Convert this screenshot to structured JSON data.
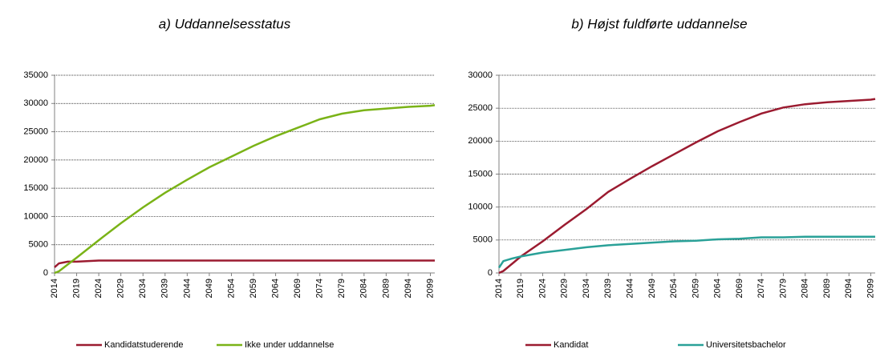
{
  "chart_data": [
    {
      "type": "line",
      "title": "a) Uddannelsesstatus",
      "x": [
        2014,
        2015,
        2017,
        2019,
        2024,
        2029,
        2034,
        2039,
        2044,
        2049,
        2054,
        2059,
        2064,
        2069,
        2074,
        2079,
        2084,
        2089,
        2094,
        2099,
        2100
      ],
      "series": [
        {
          "name": "Kandidatstuderende",
          "color": "#9b1b30",
          "values": [
            1000,
            1700,
            2000,
            2000,
            2200,
            2200,
            2200,
            2200,
            2200,
            2200,
            2200,
            2200,
            2200,
            2200,
            2200,
            2200,
            2200,
            2200,
            2200,
            2200,
            2200
          ]
        },
        {
          "name": "Ikke under uddannelse",
          "color": "#7ab317",
          "values": [
            0,
            300,
            1500,
            2700,
            5800,
            8800,
            11600,
            14200,
            16500,
            18700,
            20600,
            22500,
            24200,
            25700,
            27200,
            28200,
            28800,
            29100,
            29400,
            29600,
            29700
          ]
        }
      ],
      "xlim": [
        2014,
        2100
      ],
      "xticks": [
        2014,
        2019,
        2024,
        2029,
        2034,
        2039,
        2044,
        2049,
        2054,
        2059,
        2064,
        2069,
        2074,
        2079,
        2084,
        2089,
        2094,
        2099
      ],
      "ylim": [
        0,
        35000
      ],
      "yticks": [
        0,
        5000,
        10000,
        15000,
        20000,
        25000,
        30000,
        35000
      ],
      "grid": true,
      "legend": "bottom"
    },
    {
      "type": "line",
      "title": "b) Højst fuldførte uddannelse",
      "x": [
        2014,
        2015,
        2017,
        2019,
        2024,
        2029,
        2034,
        2039,
        2044,
        2049,
        2054,
        2059,
        2064,
        2069,
        2074,
        2079,
        2084,
        2089,
        2094,
        2099,
        2100
      ],
      "series": [
        {
          "name": "Kandidat",
          "color": "#9b1b30",
          "values": [
            0,
            300,
            1400,
            2500,
            4800,
            7300,
            9700,
            12300,
            14300,
            16200,
            18000,
            19800,
            21500,
            22900,
            24200,
            25100,
            25600,
            25900,
            26100,
            26300,
            26400
          ]
        },
        {
          "name": "Universitetsbachelor",
          "color": "#2aa198",
          "values": [
            800,
            1800,
            2200,
            2500,
            3100,
            3500,
            3900,
            4200,
            4400,
            4600,
            4800,
            4900,
            5100,
            5200,
            5400,
            5400,
            5500,
            5500,
            5500,
            5500,
            5500
          ]
        }
      ],
      "xlim": [
        2014,
        2100
      ],
      "xticks": [
        2014,
        2019,
        2024,
        2029,
        2034,
        2039,
        2044,
        2049,
        2054,
        2059,
        2064,
        2069,
        2074,
        2079,
        2084,
        2089,
        2094,
        2099
      ],
      "ylim": [
        0,
        30000
      ],
      "yticks": [
        0,
        5000,
        10000,
        15000,
        20000,
        25000,
        30000
      ],
      "grid": true,
      "legend": "bottom"
    }
  ]
}
